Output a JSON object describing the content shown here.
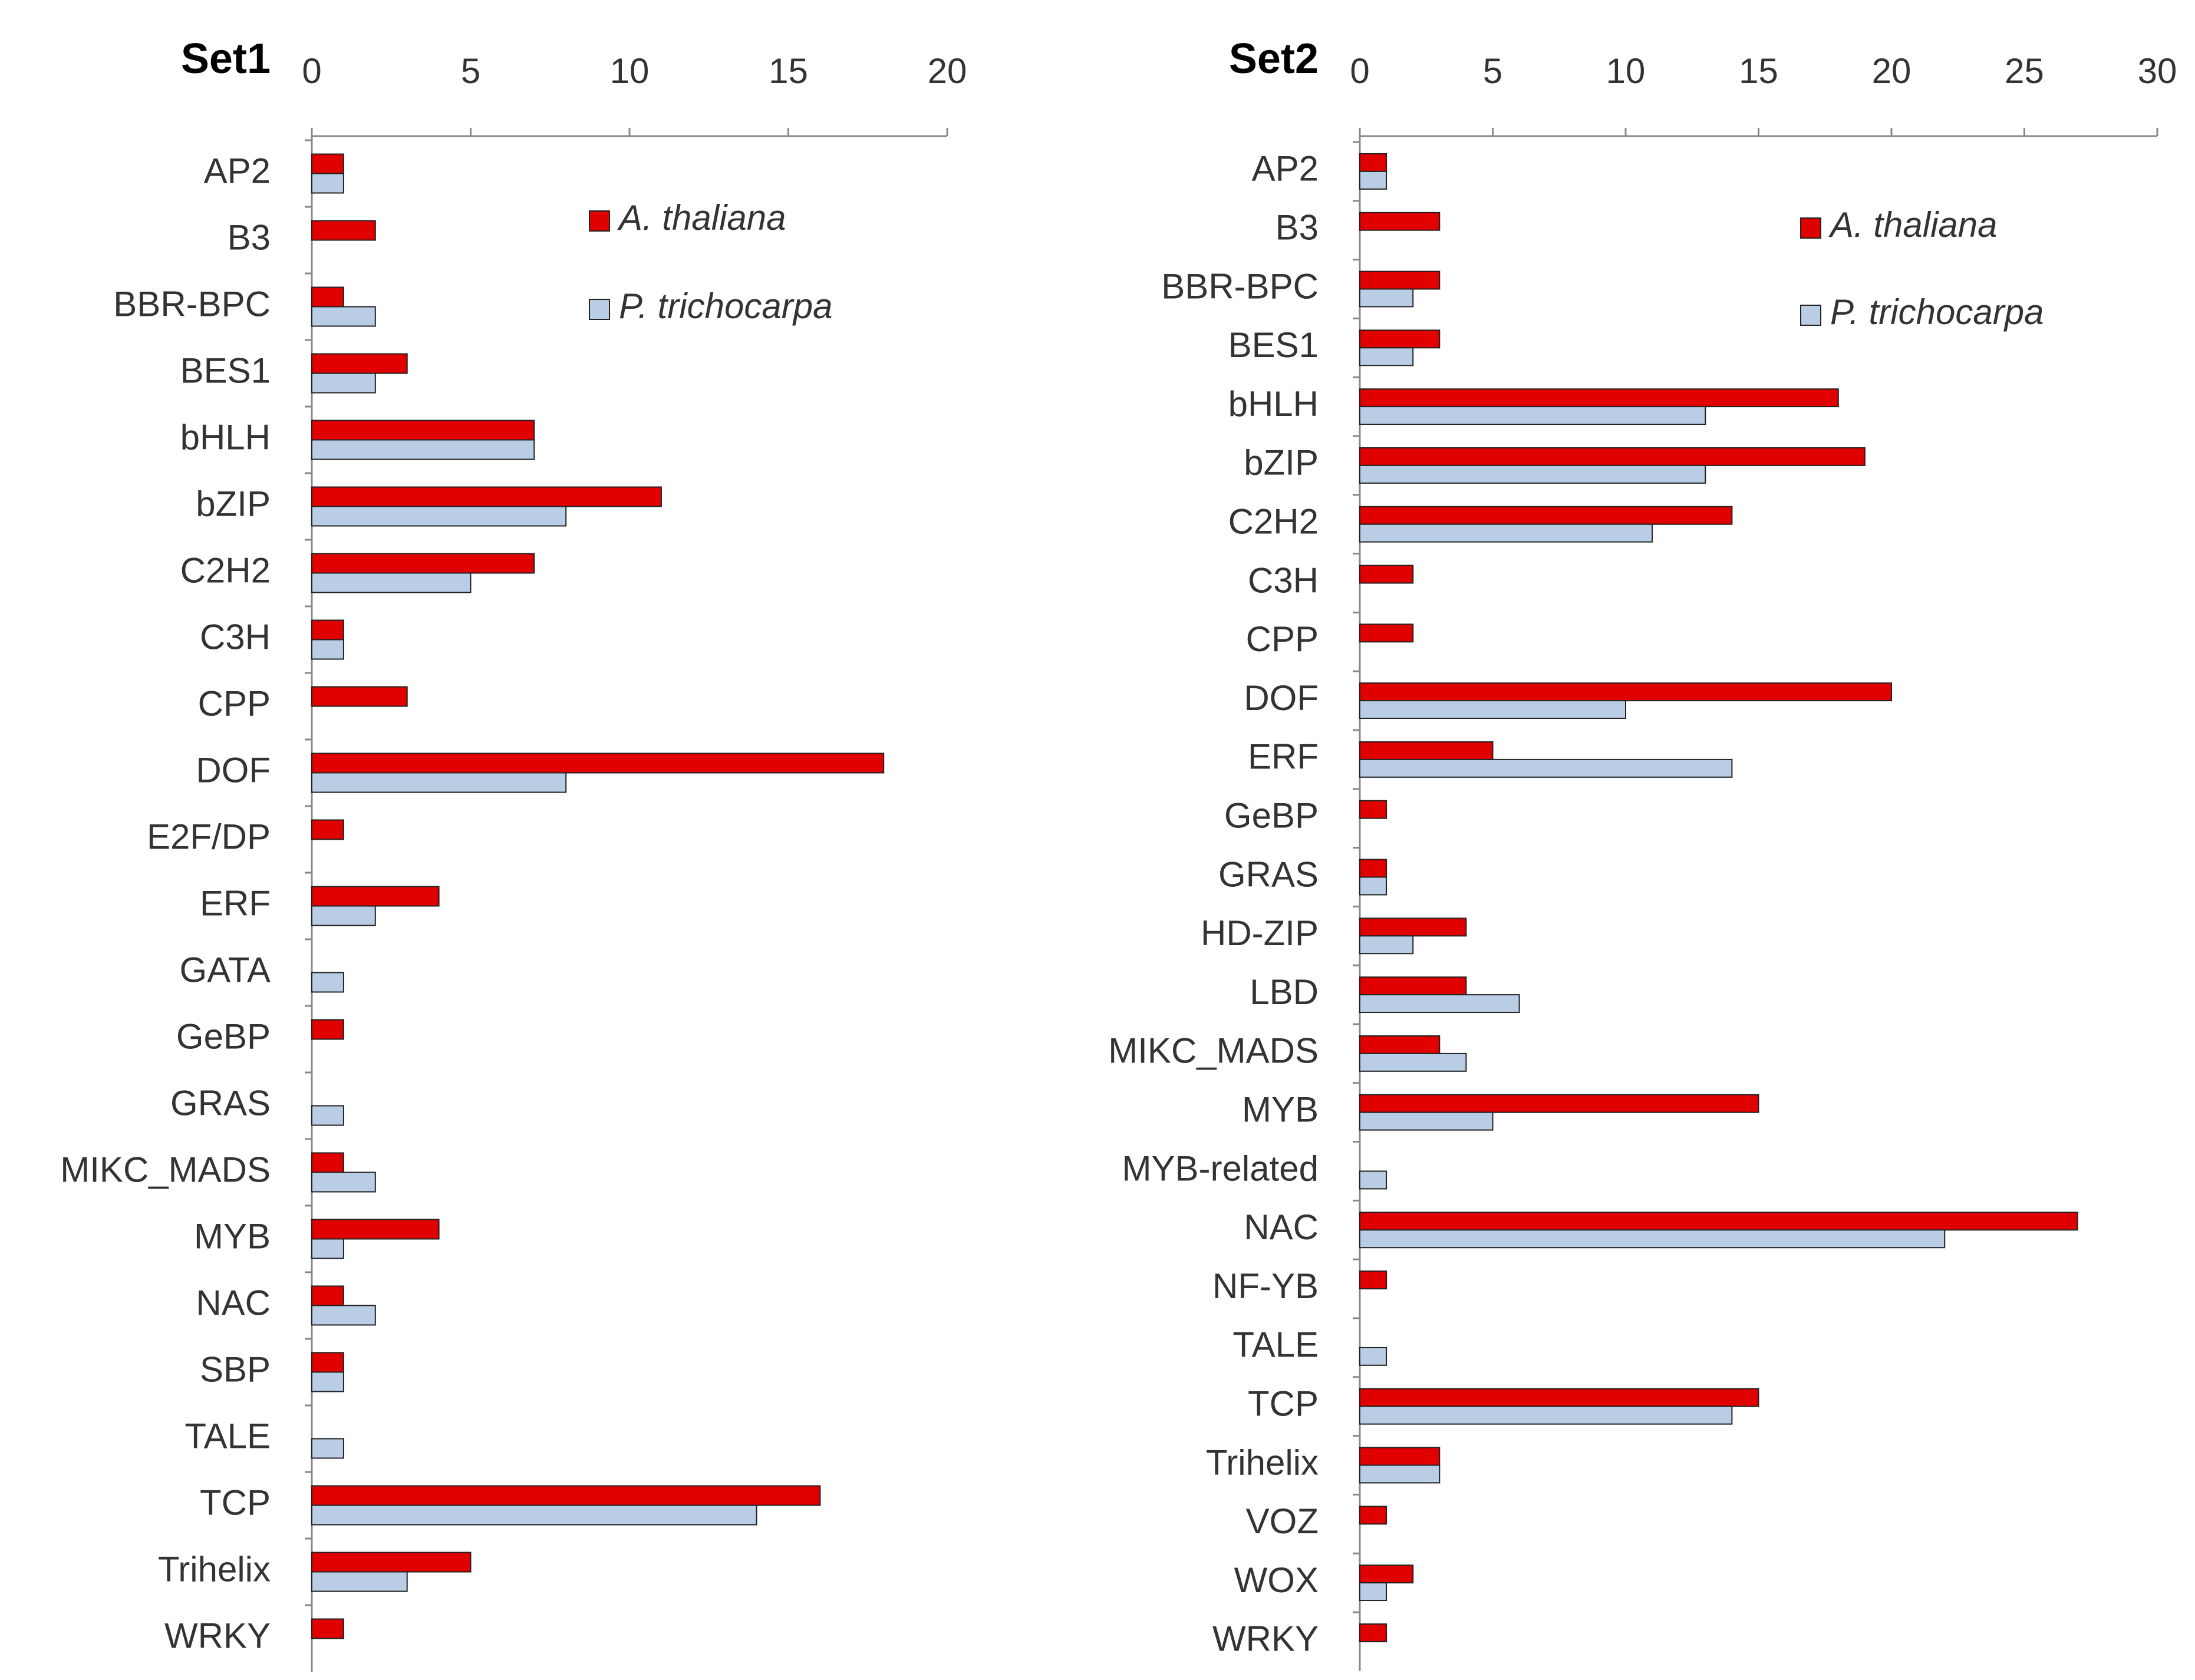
{
  "chart_data": [
    {
      "type": "bar",
      "orientation": "horizontal",
      "title": "Set1",
      "categories": [
        "AP2",
        "B3",
        "BBR-BPC",
        "BES1",
        "bHLH",
        "bZIP",
        "C2H2",
        "C3H",
        "CPP",
        "DOF",
        "E2F/DP",
        "ERF",
        "GATA",
        "GeBP",
        "GRAS",
        "MIKC_MADS",
        "MYB",
        "NAC",
        "SBP",
        "TALE",
        "TCP",
        "Trihelix",
        "WRKY"
      ],
      "series": [
        {
          "name": "A. thaliana",
          "color": "#e00000",
          "values": [
            1,
            2,
            1,
            3,
            7,
            11,
            7,
            1,
            3,
            18,
            1,
            4,
            0,
            1,
            0,
            1,
            4,
            1,
            1,
            0,
            16,
            5,
            1
          ]
        },
        {
          "name": "P. trichocarpa",
          "color": "#b9cde5",
          "values": [
            1,
            0,
            2,
            2,
            7,
            8,
            5,
            1,
            0,
            8,
            0,
            2,
            1,
            0,
            1,
            2,
            1,
            2,
            1,
            1,
            14,
            3,
            0
          ]
        }
      ],
      "xlim": [
        0,
        20
      ],
      "xticks": [
        0,
        5,
        10,
        15,
        20
      ]
    },
    {
      "type": "bar",
      "orientation": "horizontal",
      "title": "Set2",
      "categories": [
        "AP2",
        "B3",
        "BBR-BPC",
        "BES1",
        "bHLH",
        "bZIP",
        "C2H2",
        "C3H",
        "CPP",
        "DOF",
        "ERF",
        "GeBP",
        "GRAS",
        "HD-ZIP",
        "LBD",
        "MIKC_MADS",
        "MYB",
        "MYB-related",
        "NAC",
        "NF-YB",
        "TALE",
        "TCP",
        "Trihelix",
        "VOZ",
        "WOX",
        "WRKY"
      ],
      "series": [
        {
          "name": "A. thaliana",
          "color": "#e00000",
          "values": [
            1,
            3,
            3,
            3,
            18,
            19,
            14,
            2,
            2,
            20,
            5,
            1,
            1,
            4,
            4,
            3,
            15,
            0,
            27,
            1,
            0,
            15,
            3,
            1,
            2,
            1
          ]
        },
        {
          "name": "P. trichocarpa",
          "color": "#b9cde5",
          "values": [
            1,
            0,
            2,
            2,
            13,
            13,
            11,
            0,
            0,
            10,
            14,
            0,
            1,
            2,
            6,
            4,
            5,
            1,
            22,
            0,
            1,
            14,
            3,
            0,
            1,
            0
          ]
        }
      ],
      "xlim": [
        0,
        30
      ],
      "xticks": [
        0,
        5,
        10,
        15,
        20,
        25,
        30
      ]
    }
  ]
}
